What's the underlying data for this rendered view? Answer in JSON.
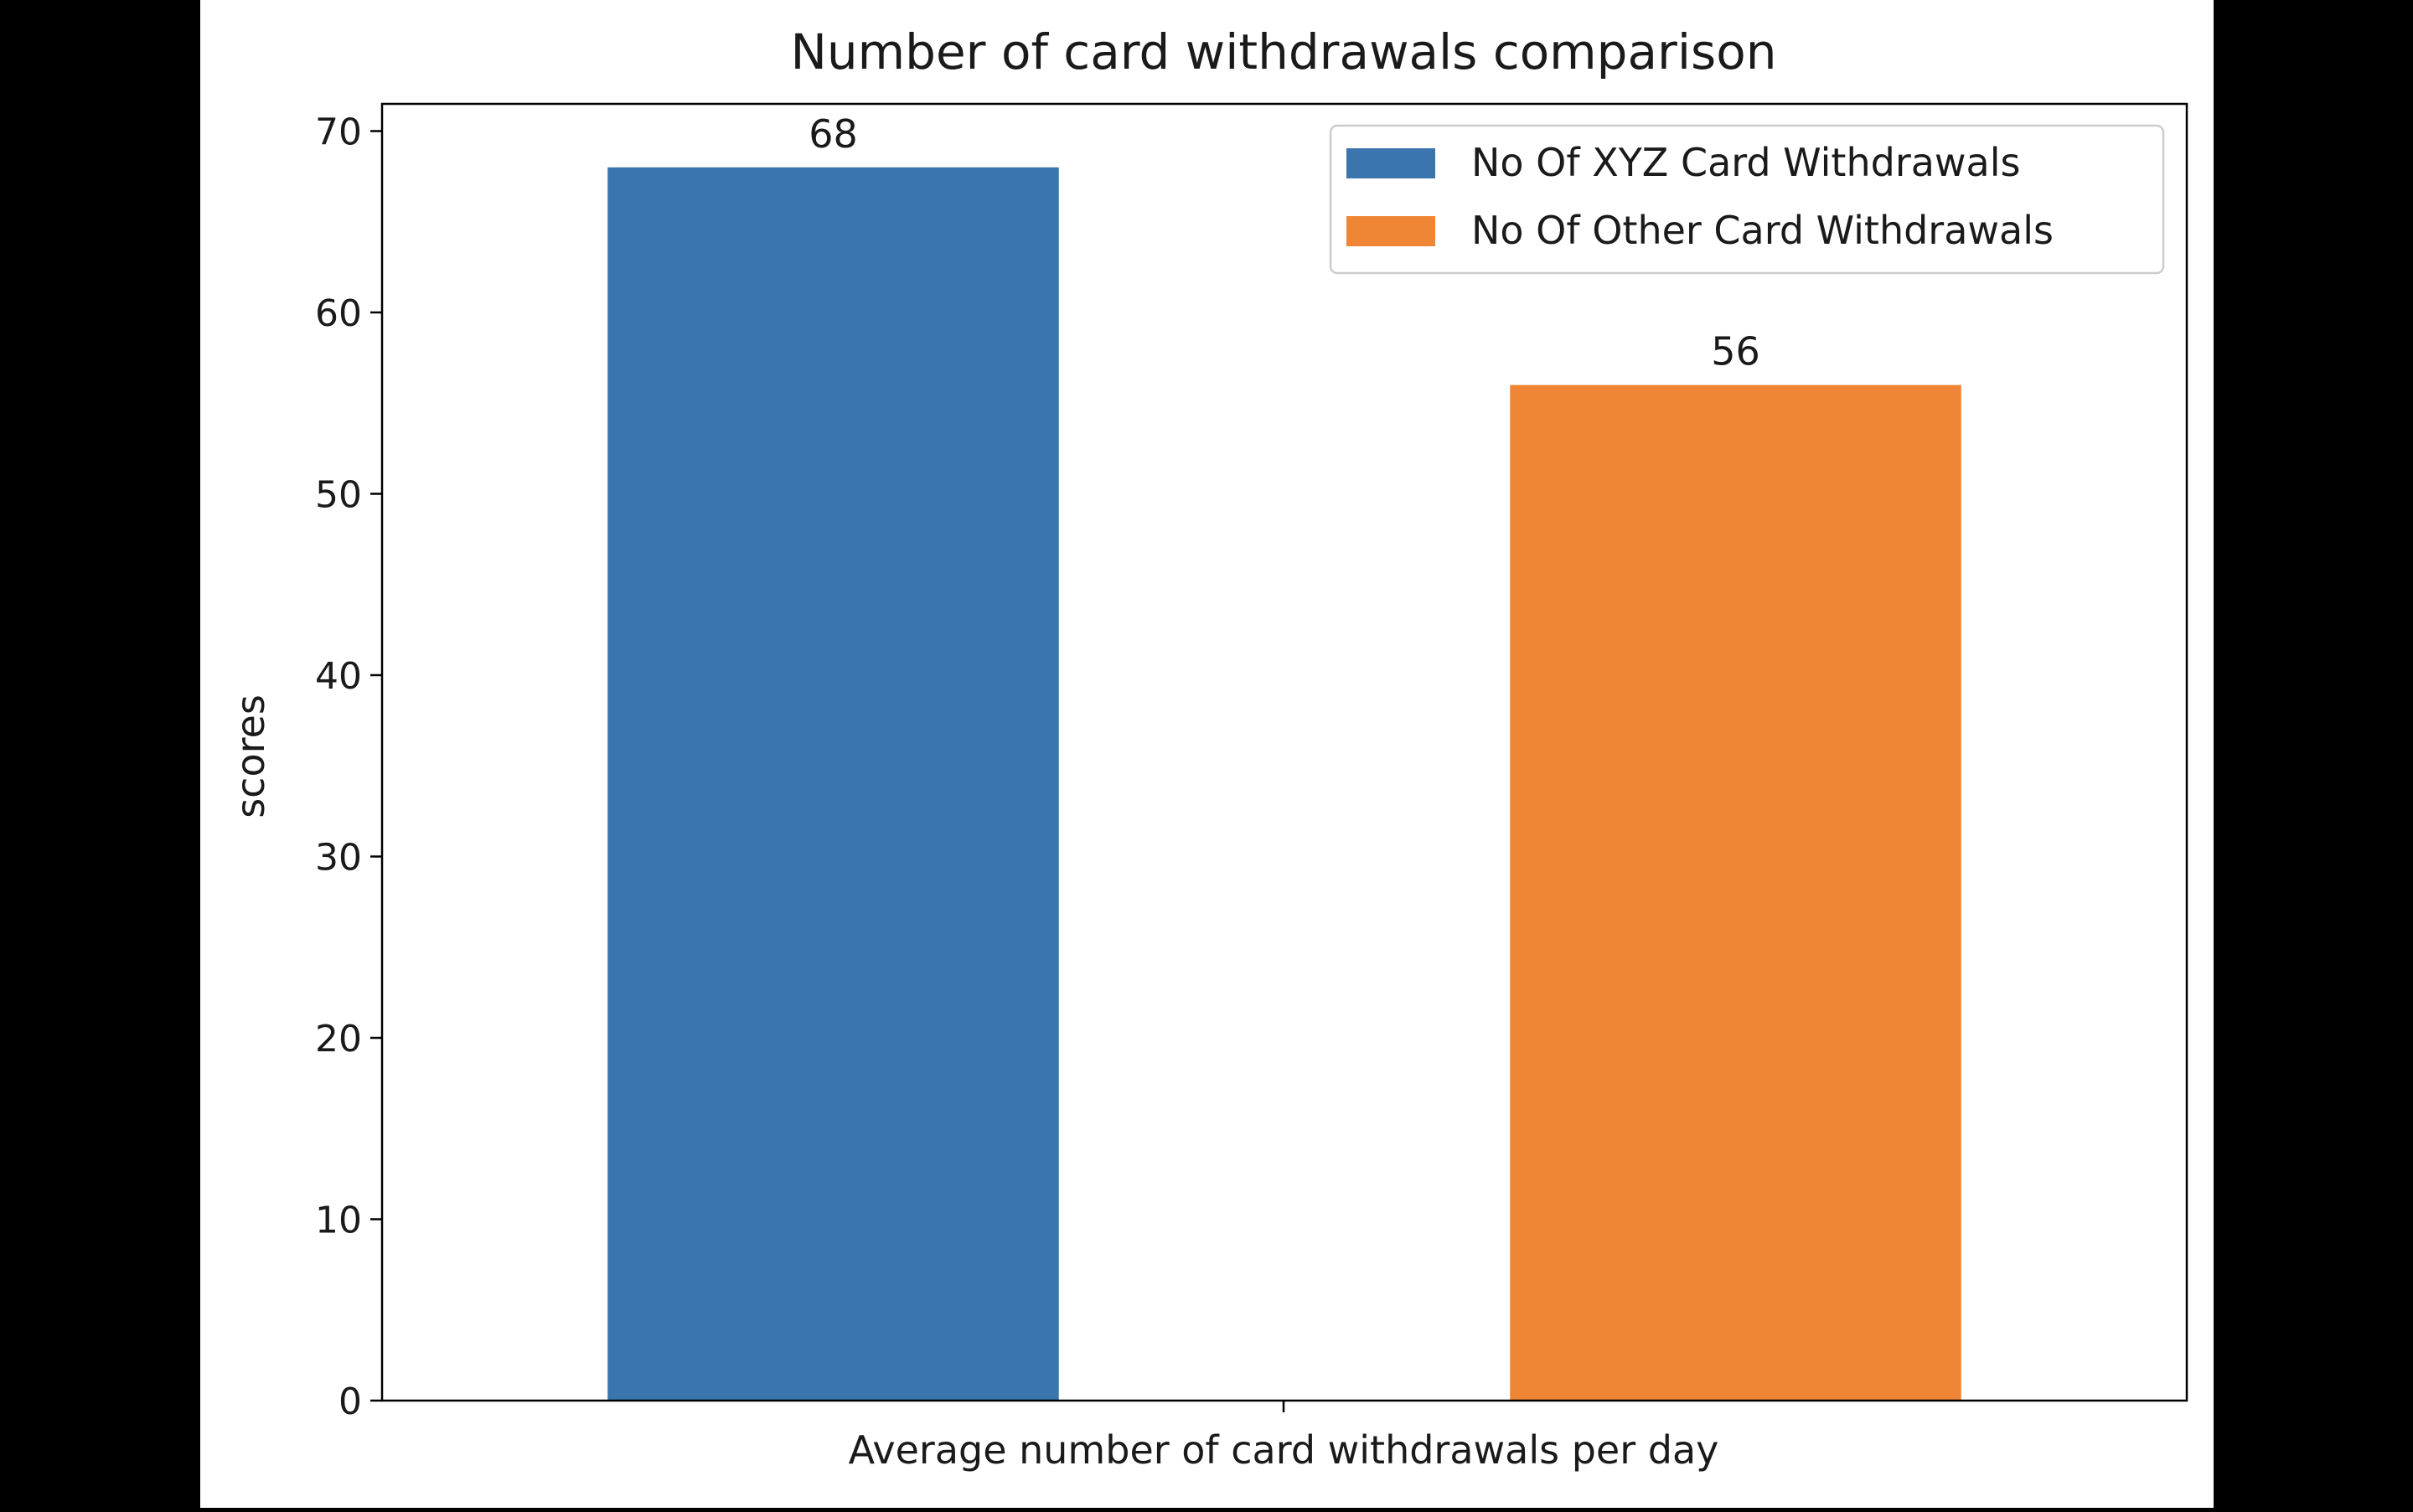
{
  "chart_data": {
    "type": "bar",
    "title": "Number of card withdrawals comparison",
    "xlabel": "Average number of card withdrawals per day",
    "ylabel": "scores",
    "ylim": [
      0,
      71.5
    ],
    "yticks": [
      "0",
      "10",
      "20",
      "30",
      "40",
      "50",
      "60",
      "70"
    ],
    "grid": false,
    "legend_position": "top-right",
    "series": [
      {
        "name": "No Of XYZ Card Withdrawals",
        "value": 68,
        "label": "68",
        "color": "#3a75ae"
      },
      {
        "name": "No Of Other Card Withdrawals",
        "value": 56,
        "label": "56",
        "color": "#ef8636"
      }
    ]
  }
}
